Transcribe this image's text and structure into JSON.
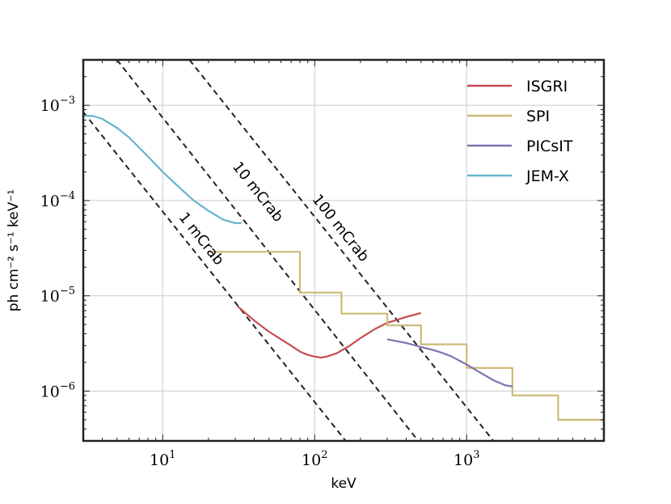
{
  "chart_data": {
    "type": "line",
    "xlabel": "keV",
    "ylabel": "ph cm⁻² s⁻¹ keV⁻¹",
    "xscale": "log",
    "yscale": "log",
    "xlim": [
      3,
      8000
    ],
    "ylim": [
      3e-07,
      0.003
    ],
    "grid": true,
    "legend_position": "top-right",
    "x_ticks": [
      {
        "value": 10,
        "base": "10",
        "exp": "1"
      },
      {
        "value": 100,
        "base": "10",
        "exp": "2"
      },
      {
        "value": 1000,
        "base": "10",
        "exp": "3"
      }
    ],
    "y_ticks": [
      {
        "value": 1e-06,
        "base": "10",
        "exp": "−6"
      },
      {
        "value": 1e-05,
        "base": "10",
        "exp": "−5"
      },
      {
        "value": 0.0001,
        "base": "10",
        "exp": "−4"
      },
      {
        "value": 0.001,
        "base": "10",
        "exp": "−3"
      }
    ],
    "series": [
      {
        "name": "ISGRI",
        "color": "#c44e52",
        "kind": "line",
        "x": [
          31,
          40,
          50,
          60,
          70,
          80,
          90,
          100,
          110,
          120,
          140,
          170,
          200,
          250,
          300,
          400,
          500
        ],
        "y": [
          7.8e-06,
          5.5e-06,
          4.2e-06,
          3.5e-06,
          3e-06,
          2.6e-06,
          2.4e-06,
          2.3e-06,
          2.25e-06,
          2.3e-06,
          2.5e-06,
          3e-06,
          3.6e-06,
          4.5e-06,
          5.2e-06,
          6e-06,
          6.6e-06
        ]
      },
      {
        "name": "SPI",
        "color": "#ccb974",
        "kind": "step",
        "x": [
          20,
          80,
          80,
          150,
          150,
          300,
          300,
          500,
          500,
          1000,
          1000,
          2000,
          2000,
          4000,
          4000,
          8000
        ],
        "y": [
          2.9e-05,
          2.9e-05,
          1.08e-05,
          1.08e-05,
          6.5e-06,
          6.5e-06,
          4.9e-06,
          4.9e-06,
          3.1e-06,
          3.1e-06,
          1.75e-06,
          1.75e-06,
          9e-07,
          9e-07,
          5e-07,
          5e-07
        ]
      },
      {
        "name": "PICsIT",
        "color": "#8172b2",
        "kind": "line",
        "x": [
          300,
          400,
          500,
          600,
          700,
          800,
          1000,
          1200,
          1500,
          1800,
          2000
        ],
        "y": [
          3.5e-06,
          3.2e-06,
          2.9e-06,
          2.7e-06,
          2.5e-06,
          2.3e-06,
          1.9e-06,
          1.6e-06,
          1.3e-06,
          1.15e-06,
          1.12e-06
        ]
      },
      {
        "name": "JEM-X",
        "color": "#64b5cd",
        "kind": "line",
        "x": [
          3,
          3.5,
          4,
          5,
          6,
          8,
          10,
          13,
          16,
          20,
          25,
          30,
          33
        ],
        "y": [
          0.00078,
          0.00077,
          0.00072,
          0.00058,
          0.00046,
          0.00029,
          0.0002,
          0.000135,
          0.0001,
          7.8e-05,
          6.3e-05,
          5.8e-05,
          5.8e-05
        ]
      }
    ],
    "reference_lines": [
      {
        "label": "1 mCrab",
        "x": [
          3,
          160
        ],
        "y": [
          0.00085,
          3e-07
        ],
        "label_x": 17,
        "label_y": 3.7e-05
      },
      {
        "label": "10 mCrab",
        "x": [
          5,
          480
        ],
        "y": [
          0.003,
          3e-07
        ],
        "label_x": 40,
        "label_y": 0.000115
      },
      {
        "label": "100 mCrab",
        "x": [
          15,
          1500
        ],
        "y": [
          0.003,
          3e-07
        ],
        "label_x": 140,
        "label_y": 4.8e-05
      }
    ]
  }
}
